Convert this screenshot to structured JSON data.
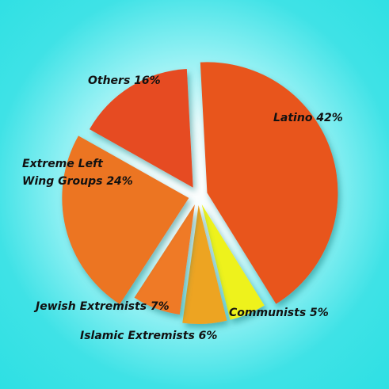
{
  "chart_data": {
    "type": "pie",
    "title": "",
    "slices": [
      {
        "label": "Latino",
        "value": 42,
        "display": "Latino 42%",
        "color": "#e8551f"
      },
      {
        "label": "Communists",
        "value": 5,
        "display": "Communists 5%",
        "color": "#eef21c"
      },
      {
        "label": "Islamic Extremists",
        "value": 6,
        "display": "Islamic Extremists 6%",
        "color": "#eda421"
      },
      {
        "label": "Jewish Extremists",
        "value": 7,
        "display": "Jewish Extremists 7%",
        "color": "#ef7a25"
      },
      {
        "label": "Extreme Left Wing Groups",
        "value": 24,
        "display_lines": [
          "Extreme Left",
          "Wing Groups 24%"
        ],
        "color": "#ec7424"
      },
      {
        "label": "Others",
        "value": 16,
        "display": "Others 16%",
        "color": "#e64c22"
      }
    ]
  }
}
